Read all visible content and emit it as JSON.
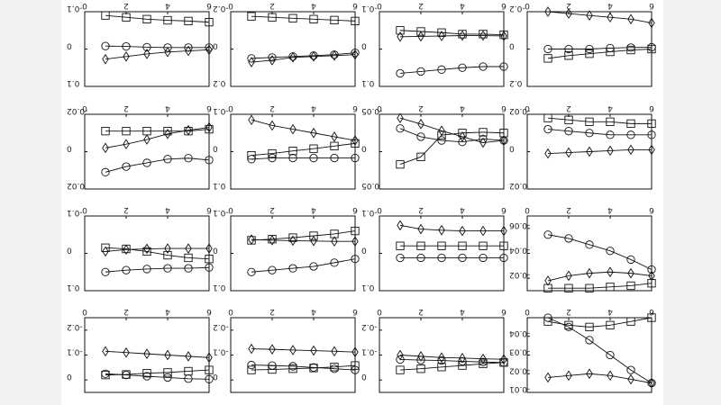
{
  "chart_data": [
    {
      "type": "line",
      "row": 0,
      "col": 0,
      "xticks": [
        "0",
        "2",
        "4",
        "6"
      ],
      "yticks": [
        "-0.1",
        "0",
        "0.1"
      ],
      "ylim": [
        0.1,
        -0.1
      ],
      "x": [
        1,
        2,
        3,
        4,
        5,
        6
      ],
      "series": [
        {
          "marker": "square",
          "values": [
            -0.09,
            -0.085,
            -0.08,
            -0.077,
            -0.075,
            -0.072
          ]
        },
        {
          "marker": "circle",
          "values": [
            -0.008,
            -0.007,
            -0.005,
            -0.004,
            -0.004,
            -0.004
          ]
        },
        {
          "marker": "diamond",
          "values": [
            0.027,
            0.02,
            0.013,
            0.008,
            0.005,
            0.002
          ]
        }
      ]
    },
    {
      "type": "line",
      "row": 0,
      "col": 1,
      "xticks": [
        "0",
        "2",
        "4",
        "6"
      ],
      "yticks": [
        "-0.2",
        "0",
        "0.2"
      ],
      "ylim": [
        0.2,
        -0.2
      ],
      "x": [
        1,
        2,
        3,
        4,
        5,
        6
      ],
      "series": [
        {
          "marker": "square",
          "values": [
            -0.175,
            -0.17,
            -0.165,
            -0.16,
            -0.155,
            -0.15
          ]
        },
        {
          "marker": "circle",
          "values": [
            0.05,
            0.045,
            0.04,
            0.035,
            0.03,
            0.02
          ]
        },
        {
          "marker": "diamond",
          "values": [
            0.07,
            0.06,
            0.045,
            0.04,
            0.035,
            0.03
          ]
        }
      ]
    },
    {
      "type": "line",
      "row": 0,
      "col": 2,
      "xticks": [
        "0",
        "2",
        "4",
        "6"
      ],
      "yticks": [
        "-0.1",
        "0",
        "0.1"
      ],
      "ylim": [
        0.1,
        -0.1
      ],
      "x": [
        1,
        2,
        3,
        4,
        5,
        6
      ],
      "series": [
        {
          "marker": "square",
          "values": [
            -0.05,
            -0.047,
            -0.044,
            -0.04,
            -0.04,
            -0.038
          ]
        },
        {
          "marker": "diamond",
          "values": [
            -0.033,
            -0.034,
            -0.035,
            -0.036,
            -0.036,
            -0.035
          ]
        },
        {
          "marker": "circle",
          "values": [
            0.065,
            0.06,
            0.055,
            0.05,
            0.047,
            0.047
          ]
        }
      ]
    },
    {
      "type": "line",
      "row": 0,
      "col": 3,
      "xticks": [
        "0",
        "2",
        "4",
        "6"
      ],
      "yticks": [
        "-0.2",
        "0",
        "0.2"
      ],
      "ylim": [
        0.2,
        -0.2
      ],
      "x": [
        1,
        2,
        3,
        4,
        5,
        6
      ],
      "series": [
        {
          "marker": "diamond",
          "values": [
            -0.2,
            -0.19,
            -0.18,
            -0.17,
            -0.16,
            -0.14
          ]
        },
        {
          "marker": "circle",
          "values": [
            0.0,
            0.0,
            0.0,
            -0.005,
            -0.008,
            -0.01
          ]
        },
        {
          "marker": "square",
          "values": [
            0.05,
            0.035,
            0.025,
            0.015,
            0.005,
            0.0
          ]
        }
      ]
    },
    {
      "type": "line",
      "row": 1,
      "col": 0,
      "xticks": [
        "0",
        "2",
        "4",
        "6"
      ],
      "yticks": [
        "-0.02",
        "0",
        "0.02"
      ],
      "ylim": [
        0.02,
        -0.02
      ],
      "x": [
        1,
        2,
        3,
        4,
        5,
        6
      ],
      "series": [
        {
          "marker": "square",
          "values": [
            -0.011,
            -0.011,
            -0.011,
            -0.011,
            -0.011,
            -0.012
          ]
        },
        {
          "marker": "diamond",
          "values": [
            -0.002,
            -0.004,
            -0.0065,
            -0.0095,
            -0.0115,
            -0.013
          ]
        },
        {
          "marker": "circle",
          "values": [
            0.011,
            0.008,
            0.006,
            0.004,
            0.0035,
            0.0045
          ]
        }
      ]
    },
    {
      "type": "line",
      "row": 1,
      "col": 1,
      "xticks": [
        "0",
        "2",
        "4",
        "6"
      ],
      "yticks": [
        "-0.1",
        "0",
        "0.1"
      ],
      "ylim": [
        0.1,
        -0.1
      ],
      "x": [
        1,
        2,
        3,
        4,
        5,
        6
      ],
      "series": [
        {
          "marker": "diamond",
          "values": [
            -0.085,
            -0.07,
            -0.06,
            -0.05,
            -0.04,
            -0.03
          ]
        },
        {
          "marker": "square",
          "values": [
            0.01,
            0.005,
            -0.002,
            -0.008,
            -0.015,
            -0.022
          ]
        },
        {
          "marker": "circle",
          "values": [
            0.02,
            0.017,
            0.017,
            0.017,
            0.017,
            0.017
          ]
        }
      ]
    },
    {
      "type": "line",
      "row": 1,
      "col": 2,
      "xticks": [
        "0",
        "2",
        "4",
        "6"
      ],
      "yticks": [
        "-0.05",
        "0",
        "0.05"
      ],
      "ylim": [
        0.05,
        -0.05
      ],
      "x": [
        1,
        2,
        3,
        4,
        5,
        6
      ],
      "series": [
        {
          "marker": "diamond",
          "values": [
            -0.045,
            -0.037,
            -0.028,
            -0.02,
            -0.012,
            -0.015
          ]
        },
        {
          "marker": "circle",
          "values": [
            -0.031,
            -0.02,
            -0.015,
            -0.013,
            -0.017,
            -0.015
          ]
        },
        {
          "marker": "square",
          "values": [
            0.017,
            0.007,
            -0.022,
            -0.025,
            -0.026,
            -0.025
          ]
        }
      ]
    },
    {
      "type": "line",
      "row": 1,
      "col": 3,
      "xticks": [
        "0",
        "2",
        "4",
        "6"
      ],
      "yticks": [
        "-0.02",
        "0",
        "0.02"
      ],
      "ylim": [
        0.02,
        -0.02
      ],
      "x": [
        1,
        2,
        3,
        4,
        5,
        6
      ],
      "series": [
        {
          "marker": "square",
          "values": [
            -0.018,
            -0.017,
            -0.016,
            -0.016,
            -0.015,
            -0.015
          ]
        },
        {
          "marker": "circle",
          "values": [
            -0.012,
            -0.011,
            -0.01,
            -0.009,
            -0.009,
            -0.009
          ]
        },
        {
          "marker": "diamond",
          "values": [
            0.001,
            0.0005,
            0.0,
            -0.0005,
            -0.001,
            -0.001
          ]
        }
      ]
    },
    {
      "type": "line",
      "row": 2,
      "col": 0,
      "xticks": [
        "0",
        "2",
        "4",
        "6"
      ],
      "yticks": [
        "-0.1",
        "0",
        "0.1"
      ],
      "ylim": [
        0.1,
        -0.1
      ],
      "x": [
        1,
        2,
        3,
        4,
        5,
        6
      ],
      "series": [
        {
          "marker": "diamond",
          "values": [
            -0.005,
            -0.01,
            -0.012,
            -0.013,
            -0.013,
            -0.013
          ]
        },
        {
          "marker": "square",
          "values": [
            -0.015,
            -0.012,
            -0.005,
            0.005,
            0.012,
            0.015
          ]
        },
        {
          "marker": "circle",
          "values": [
            0.05,
            0.045,
            0.042,
            0.04,
            0.04,
            0.038
          ]
        }
      ]
    },
    {
      "type": "line",
      "row": 2,
      "col": 1,
      "xticks": [
        "0",
        "2",
        "4",
        "6"
      ],
      "yticks": [
        "-0.1",
        "0",
        "0.1"
      ],
      "ylim": [
        0.1,
        -0.1
      ],
      "x": [
        1,
        2,
        3,
        4,
        5,
        6
      ],
      "series": [
        {
          "marker": "square",
          "values": [
            -0.035,
            -0.038,
            -0.042,
            -0.047,
            -0.052,
            -0.06
          ]
        },
        {
          "marker": "diamond",
          "values": [
            -0.037,
            -0.035,
            -0.034,
            -0.033,
            -0.032,
            -0.032
          ]
        },
        {
          "marker": "circle",
          "values": [
            0.05,
            0.045,
            0.04,
            0.035,
            0.025,
            0.015
          ]
        }
      ]
    },
    {
      "type": "line",
      "row": 2,
      "col": 2,
      "xticks": [
        "0",
        "2",
        "4",
        "6"
      ],
      "yticks": [
        "-0.1",
        "0",
        "0.1"
      ],
      "ylim": [
        0.1,
        -0.1
      ],
      "x": [
        1,
        2,
        3,
        4,
        5,
        6
      ],
      "series": [
        {
          "marker": "diamond",
          "values": [
            -0.075,
            -0.065,
            -0.062,
            -0.06,
            -0.06,
            -0.06
          ]
        },
        {
          "marker": "square",
          "values": [
            -0.02,
            -0.02,
            -0.02,
            -0.02,
            -0.02,
            -0.02
          ]
        },
        {
          "marker": "circle",
          "values": [
            0.012,
            0.012,
            0.012,
            0.012,
            0.012,
            0.012
          ]
        }
      ]
    },
    {
      "type": "line",
      "row": 2,
      "col": 3,
      "xticks": [
        "0",
        "2",
        "4",
        "6"
      ],
      "yticks": [
        "-0.06",
        "-0.04",
        "-0.02"
      ],
      "ylim": [
        -0.01,
        -0.07
      ],
      "x": [
        1,
        2,
        3,
        4,
        5,
        6
      ],
      "series": [
        {
          "marker": "circle",
          "values": [
            -0.055,
            -0.052,
            -0.047,
            -0.042,
            -0.035,
            -0.027
          ]
        },
        {
          "marker": "diamond",
          "values": [
            -0.018,
            -0.022,
            -0.024,
            -0.025,
            -0.024,
            -0.022
          ]
        },
        {
          "marker": "square",
          "values": [
            -0.012,
            -0.012,
            -0.012,
            -0.013,
            -0.014,
            -0.016
          ]
        }
      ]
    },
    {
      "type": "line",
      "row": 3,
      "col": 0,
      "xticks": [
        "0",
        "2",
        "4",
        "6"
      ],
      "yticks": [
        "-0.2",
        "-0.1",
        "0"
      ],
      "ylim": [
        0.05,
        -0.25
      ],
      "x": [
        1,
        2,
        3,
        4,
        5,
        6
      ],
      "series": [
        {
          "marker": "diamond",
          "values": [
            -0.115,
            -0.11,
            -0.105,
            -0.1,
            -0.095,
            -0.09
          ]
        },
        {
          "marker": "circle",
          "values": [
            -0.025,
            -0.02,
            -0.015,
            -0.01,
            -0.005,
            -0.003
          ]
        },
        {
          "marker": "square",
          "values": [
            -0.02,
            -0.022,
            -0.027,
            -0.03,
            -0.035,
            -0.04
          ]
        }
      ]
    },
    {
      "type": "line",
      "row": 3,
      "col": 1,
      "xticks": [
        "0",
        "2",
        "4",
        "6"
      ],
      "yticks": [
        "-0.2",
        "-0.1",
        "0"
      ],
      "ylim": [
        0.05,
        -0.25
      ],
      "x": [
        1,
        2,
        3,
        4,
        5,
        6
      ],
      "series": [
        {
          "marker": "diamond",
          "values": [
            -0.125,
            -0.123,
            -0.12,
            -0.118,
            -0.115,
            -0.112
          ]
        },
        {
          "marker": "circle",
          "values": [
            -0.06,
            -0.058,
            -0.055,
            -0.05,
            -0.045,
            -0.04
          ]
        },
        {
          "marker": "square",
          "values": [
            -0.04,
            -0.042,
            -0.045,
            -0.048,
            -0.052,
            -0.058
          ]
        }
      ]
    },
    {
      "type": "line",
      "row": 3,
      "col": 2,
      "xticks": [
        "0",
        "2",
        "4",
        "6"
      ],
      "yticks": [
        "-0.2",
        "-0.1",
        "0"
      ],
      "ylim": [
        0.05,
        -0.25
      ],
      "x": [
        1,
        2,
        3,
        4,
        5,
        6
      ],
      "series": [
        {
          "marker": "diamond",
          "values": [
            -0.1,
            -0.095,
            -0.09,
            -0.088,
            -0.085,
            -0.083
          ]
        },
        {
          "marker": "circle",
          "values": [
            -0.082,
            -0.08,
            -0.078,
            -0.075,
            -0.072,
            -0.07
          ]
        },
        {
          "marker": "square",
          "values": [
            -0.04,
            -0.045,
            -0.052,
            -0.058,
            -0.065,
            -0.07
          ]
        }
      ]
    },
    {
      "type": "line",
      "row": 3,
      "col": 3,
      "xticks": [
        "0",
        "2",
        "4",
        "6"
      ],
      "yticks": [
        "-0.04",
        "-0.03",
        "-0.02",
        "-0.01"
      ],
      "ylim": [
        -0.01,
        -0.05
      ],
      "x": [
        1,
        2,
        3,
        4,
        5,
        6
      ],
      "series": [
        {
          "marker": "circle",
          "values": [
            -0.05,
            -0.045,
            -0.038,
            -0.03,
            -0.022,
            -0.015
          ]
        },
        {
          "marker": "square",
          "values": [
            -0.048,
            -0.046,
            -0.045,
            -0.046,
            -0.048,
            -0.05
          ]
        },
        {
          "marker": "diamond",
          "values": [
            -0.018,
            -0.019,
            -0.02,
            -0.019,
            -0.017,
            -0.015
          ]
        }
      ]
    }
  ]
}
